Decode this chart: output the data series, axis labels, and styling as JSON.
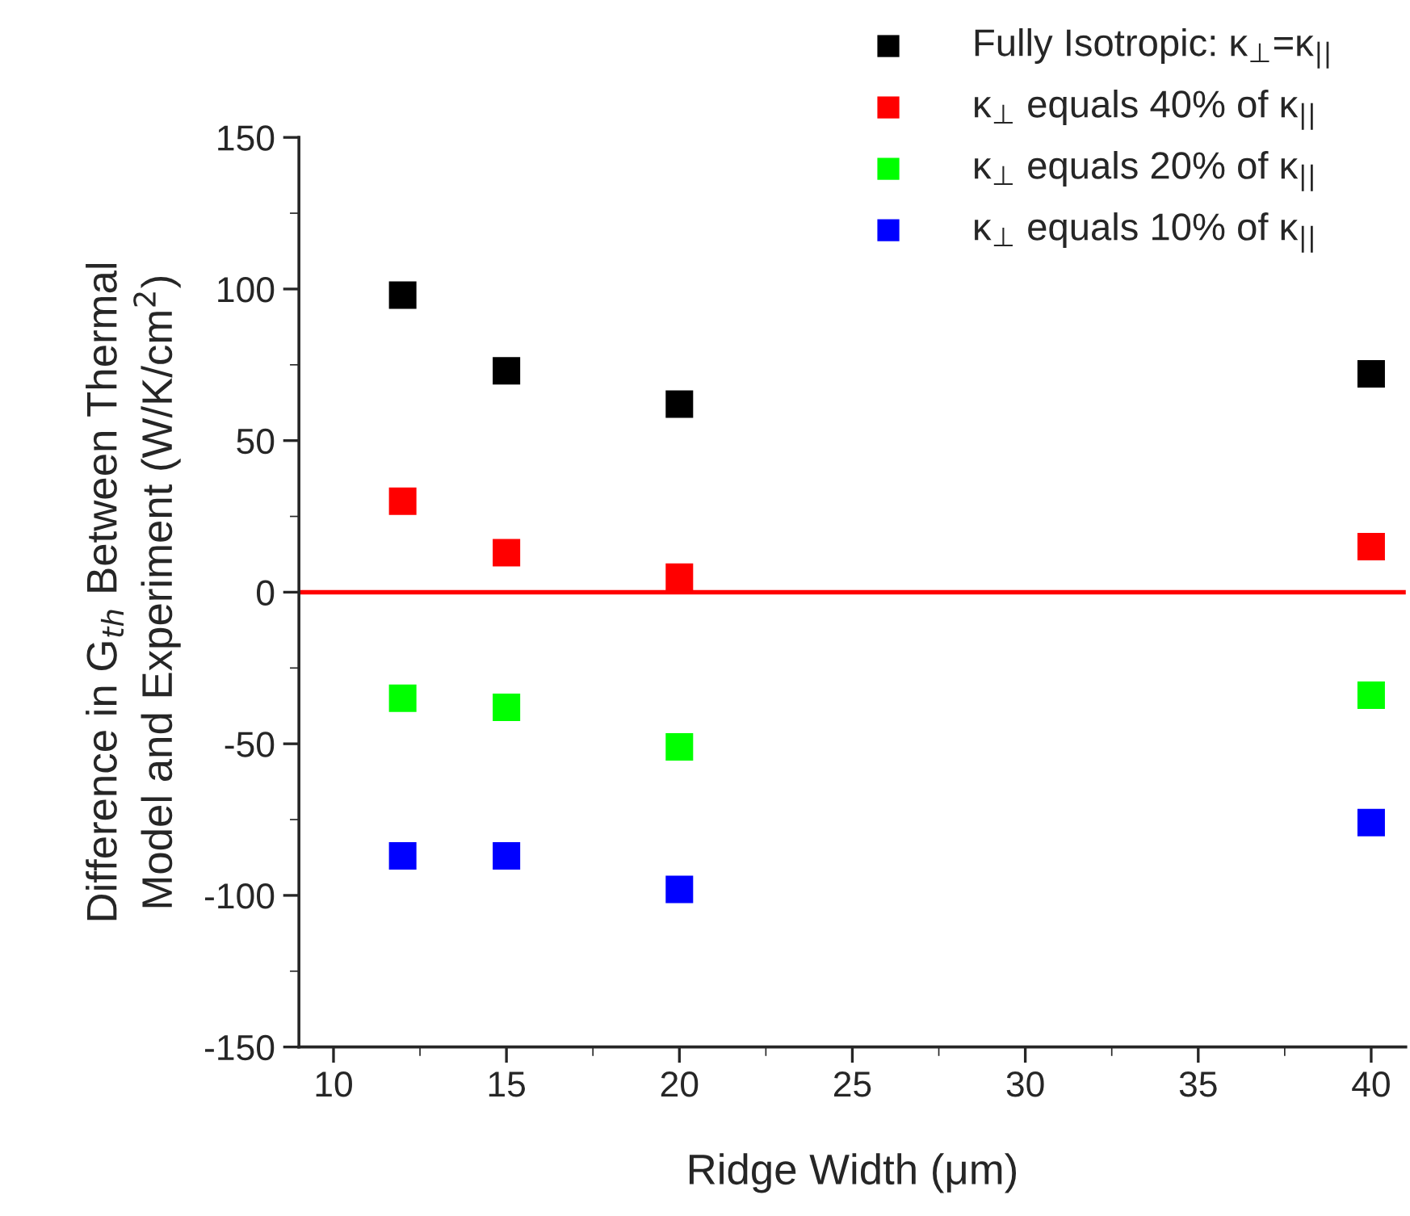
{
  "chart_data": {
    "type": "scatter",
    "xlabel": "Ridge Width (μm)",
    "ylabel": "Difference in G$_{th}$ Between Thermal\nModel and Experiment (W/K/cm$^{2}$)",
    "x": [
      12,
      15,
      20,
      40
    ],
    "series": [
      {
        "name": "Fully Isotropic: κ$_{⊥}$=κ$_{||}$",
        "color": "#000000",
        "values": [
          98,
          73,
          62,
          72
        ]
      },
      {
        "name": "κ$_{⊥}$ equals 40% of κ$_{||}$",
        "color": "#ff0000",
        "values": [
          30,
          13,
          5,
          15
        ]
      },
      {
        "name": "κ$_{⊥}$ equals 20% of κ$_{||}$",
        "color": "#00ff00",
        "values": [
          -35,
          -38,
          -51,
          -34
        ]
      },
      {
        "name": "κ$_{⊥}$ equals 10% of κ$_{||}$",
        "color": "#0000ff",
        "values": [
          -87,
          -87,
          -98,
          -76
        ]
      }
    ],
    "xlim": [
      9,
      41
    ],
    "xticks": [
      10,
      15,
      20,
      25,
      30,
      35,
      40
    ],
    "ylim": [
      -150,
      150
    ],
    "yticks": [
      -150,
      -100,
      -50,
      0,
      50,
      100,
      150
    ],
    "ref_lines": [
      {
        "axis": "y",
        "value": 0,
        "color": "#ff0000"
      }
    ],
    "marker": "square",
    "legend": "top right",
    "grid": false
  }
}
